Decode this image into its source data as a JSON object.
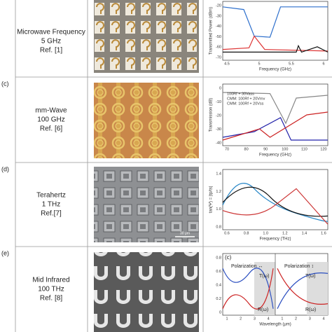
{
  "rows": [
    {
      "letter": null,
      "lines": [
        "Microwave Frequency",
        "5 GHz",
        "Ref. [1]"
      ],
      "chart": {
        "ylabel": "Transmitted Power (dBm)",
        "xlabel": "Frequency (GHz)",
        "yticks": [
          "-20",
          "-30",
          "-40",
          "-50",
          "-60",
          "-70"
        ],
        "xticks": [
          "4.5",
          "5",
          "5.5",
          "6"
        ]
      }
    },
    {
      "letter": "(c)",
      "lines": [
        "mm-Wave",
        "100 GHz",
        "Ref. [6]"
      ],
      "chart": {
        "ylabel": "Transmission (dB)",
        "xlabel": "Frequency (GHz)",
        "yticks": [
          "0",
          "-10",
          "-20",
          "-30",
          "-40"
        ],
        "xticks": [
          "70",
          "80",
          "90",
          "100",
          "110",
          "120"
        ],
        "legend": [
          "100Rf + 30Vass",
          "CMM: 100Rf + 20Vrnv",
          "CMM: 100Rf + 20Vss"
        ]
      }
    },
    {
      "letter": "(d)",
      "lines": [
        "Terahertz",
        "1 THz",
        "Ref.[7]"
      ],
      "scale": "30 μm",
      "chart": {
        "ylabel": "tan(Ψ) = |tp/ts|",
        "xlabel": "Frequency (THz)",
        "yticks": [
          "1.4",
          "1.2",
          "1.0",
          "0.8"
        ],
        "xticks": [
          "0.6",
          "0.8",
          "1.0",
          "1.2",
          "1.4",
          "1.6"
        ]
      }
    },
    {
      "letter": "(e)",
      "lines": [
        "Mid Infrared",
        "100 THz",
        "Ref. [8]"
      ],
      "chart": {
        "panel": "(c)",
        "pol1": "Polarization ↔",
        "pol2": "Polarization ↕",
        "t": "T(ω)",
        "r": "R(ω)",
        "xlabel": "Wavelength (μm)",
        "yticks": [
          "0.8",
          "0.6",
          "0.4",
          "0.2",
          "0"
        ],
        "xticks": [
          "1",
          "2",
          "3",
          "4",
          "1",
          "2",
          "3",
          "4"
        ]
      }
    }
  ]
}
